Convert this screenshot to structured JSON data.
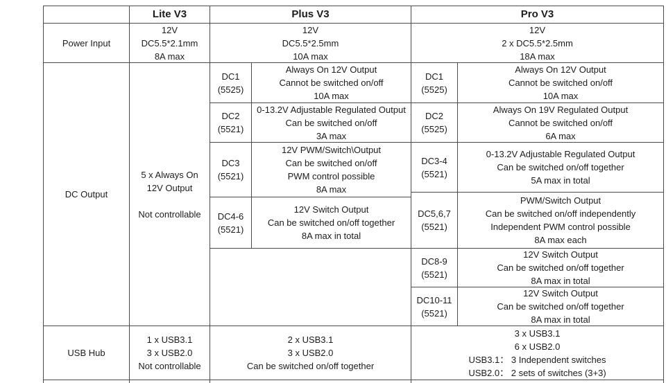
{
  "colors": {
    "border": "#4a4a4a",
    "text": "#1c1c1c",
    "background": "#ffffff"
  },
  "header": {
    "corner": "",
    "columns": [
      "Lite V3",
      "Plus V3",
      "Pro V3"
    ]
  },
  "power_input": {
    "label": "Power Input",
    "lite": [
      "12V",
      "DC5.5*2.1mm",
      "8A max"
    ],
    "plus": [
      "12V",
      "DC5.5*2.5mm",
      "10A max"
    ],
    "pro": [
      "12V",
      "2 x DC5.5*2.5mm",
      "18A max"
    ]
  },
  "dc_output": {
    "label": "DC Output",
    "lite": [
      "5 x Always On",
      "12V Output",
      "",
      "Not controllable"
    ],
    "plus": [
      {
        "port": "DC1",
        "pkg": "(5525)",
        "desc": [
          "Always On 12V Output",
          "Cannot be switched on/off",
          "10A max"
        ]
      },
      {
        "port": "DC2",
        "pkg": "(5521)",
        "desc": [
          "0-13.2V Adjustable Regulated Output",
          "Can be switched on/off",
          "3A max"
        ]
      },
      {
        "port": "DC3",
        "pkg": "(5521)",
        "desc": [
          "12V PWM/Switch\\Output",
          "Can be switched on/off",
          "PWM control possible",
          "8A max"
        ]
      },
      {
        "port": "DC4-6",
        "pkg": "(5521)",
        "desc": [
          "12V Switch Output",
          "Can be switched on/off together",
          "8A max in total"
        ]
      }
    ],
    "pro": [
      {
        "port": "DC1",
        "pkg": "(5525)",
        "desc": [
          "Always On 12V Output",
          "Cannot be switched on/off",
          "10A max"
        ]
      },
      {
        "port": "DC2",
        "pkg": "(5525)",
        "desc": [
          "Always On 19V Regulated Output",
          "Cannot be switched on/off",
          "6A max"
        ]
      },
      {
        "port": "DC3-4",
        "pkg": "(5521)",
        "desc": [
          "0-13.2V Adjustable Regulated Output",
          "Can be switched on/off together",
          "5A max in total"
        ]
      },
      {
        "port": "DC5,6,7",
        "pkg": "(5521)",
        "desc": [
          "PWM/Switch Output",
          "Can be switched on/off independently",
          "Independent PWM control possible",
          "8A max each"
        ]
      },
      {
        "port": "DC8-9",
        "pkg": "(5521)",
        "desc": [
          "12V Switch Output",
          "Can be switched on/off together",
          "8A max in total"
        ]
      },
      {
        "port": "DC10-11",
        "pkg": "(5521)",
        "desc": [
          "12V Switch Output",
          "Can be switched on/off together",
          "8A max in total"
        ]
      }
    ]
  },
  "usb_hub": {
    "label": "USB Hub",
    "lite": [
      "1 x USB3.1",
      "3 x USB2.0",
      "Not controllable"
    ],
    "plus": [
      "2 x USB3.1",
      "3 x USB2.0",
      "Can be switched on/off together"
    ],
    "pro": [
      "3 x USB3.1",
      "6 x USB2.0",
      "USB3.1： 3 Independent switches",
      "USB2.0： 2 sets of switches (3+3)"
    ]
  }
}
